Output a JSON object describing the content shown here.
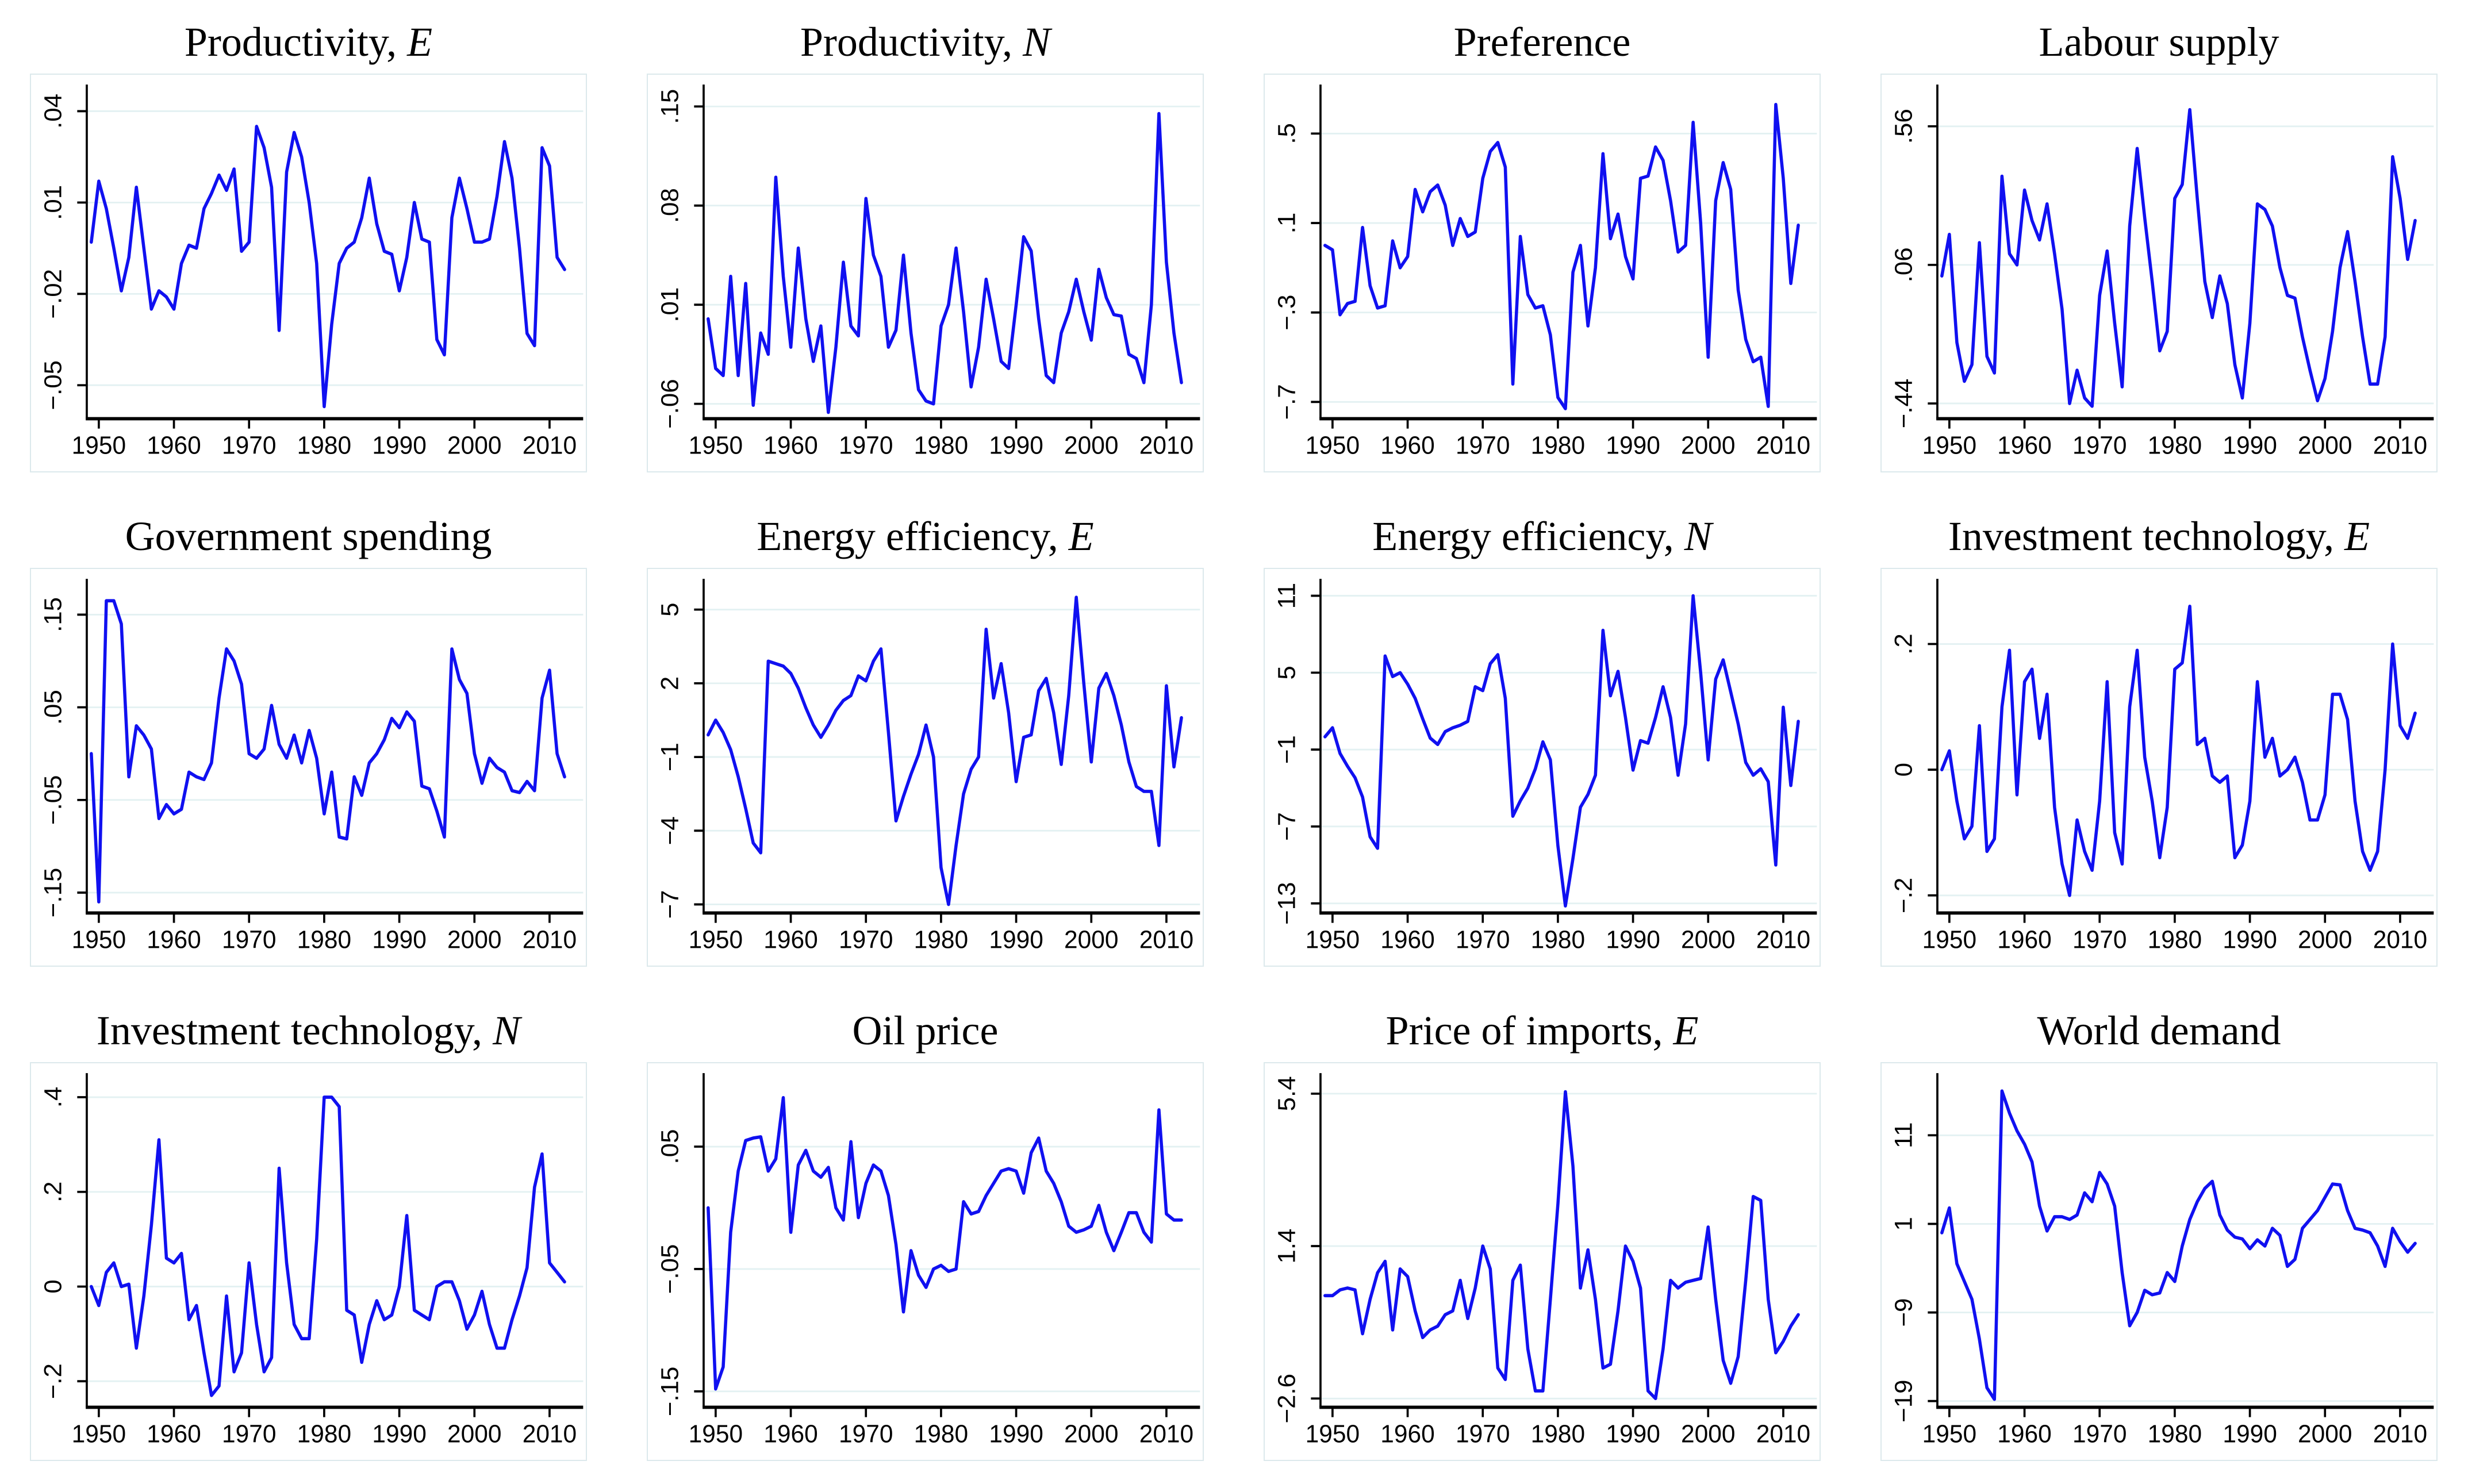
{
  "figure": {
    "line_color": "#1010f0",
    "grid_color": "#e3f1f2",
    "panel_border_color": "#dce9ec",
    "axis_color": "#000000",
    "text_color": "#000000",
    "year_start": 1949,
    "year_end": 2012,
    "x_domain": [
      1948.4,
      2013.2
    ],
    "x_ticks": [
      1950,
      1960,
      1970,
      1980,
      1990,
      2000,
      2010
    ]
  },
  "chart_data": [
    {
      "type": "line",
      "title": "Productivity, E",
      "title_main": "Productivity, ",
      "title_suffix": "E",
      "x_range": [
        1949,
        2012
      ],
      "y_tick_values": [
        0.04,
        0.01,
        -0.02,
        -0.05
      ],
      "y_tick_labels": [
        ".04",
        ".01",
        "−.02",
        "−.05"
      ],
      "ylim": [
        -0.061,
        0.0455
      ],
      "values": [
        -0.003,
        0.017,
        0.008,
        -0.005,
        -0.019,
        -0.008,
        0.015,
        -0.005,
        -0.025,
        -0.019,
        -0.021,
        -0.025,
        -0.01,
        -0.004,
        -0.005,
        0.008,
        0.013,
        0.019,
        0.014,
        0.021,
        -0.006,
        -0.003,
        0.035,
        0.028,
        0.015,
        -0.032,
        0.02,
        0.033,
        0.025,
        0.01,
        -0.01,
        -0.057,
        -0.03,
        -0.01,
        -0.005,
        -0.003,
        0.005,
        0.018,
        0.003,
        -0.006,
        -0.007,
        -0.019,
        -0.008,
        0.01,
        -0.002,
        -0.003,
        -0.035,
        -0.04,
        0.005,
        0.018,
        0.008,
        -0.003,
        -0.003,
        -0.002,
        0.012,
        0.03,
        0.018,
        -0.005,
        -0.033,
        -0.037,
        0.028,
        0.022,
        -0.008,
        -0.012
      ]
    },
    {
      "type": "line",
      "title": "Productivity, N",
      "title_main": "Productivity, ",
      "title_suffix": "N",
      "x_range": [
        1949,
        2012
      ],
      "y_tick_values": [
        0.15,
        0.08,
        0.01,
        -0.06
      ],
      "y_tick_labels": [
        ".15",
        ".08",
        ".01",
        "−.06"
      ],
      "ylim": [
        -0.0705,
        0.1585
      ],
      "values": [
        0.0,
        -0.035,
        -0.04,
        0.03,
        -0.04,
        0.025,
        -0.061,
        -0.01,
        -0.025,
        0.1,
        0.03,
        -0.02,
        0.05,
        0.0,
        -0.03,
        -0.005,
        -0.066,
        -0.02,
        0.04,
        -0.005,
        -0.012,
        0.085,
        0.045,
        0.03,
        -0.02,
        -0.008,
        0.045,
        -0.01,
        -0.05,
        -0.058,
        -0.06,
        -0.005,
        0.01,
        0.05,
        0.005,
        -0.048,
        -0.02,
        0.028,
        0.0,
        -0.03,
        -0.035,
        0.01,
        0.058,
        0.048,
        0.0,
        -0.04,
        -0.045,
        -0.01,
        0.005,
        0.028,
        0.005,
        -0.015,
        0.035,
        0.015,
        0.003,
        0.002,
        -0.025,
        -0.028,
        -0.045,
        0.01,
        0.145,
        0.04,
        -0.01,
        -0.045
      ]
    },
    {
      "type": "line",
      "title": "Preference",
      "title_main": "Preference",
      "title_suffix": "",
      "x_range": [
        1949,
        2012
      ],
      "y_tick_values": [
        0.5,
        0.1,
        -0.3,
        -0.7
      ],
      "y_tick_labels": [
        ".5",
        ".1",
        "−.3",
        "−.7"
      ],
      "ylim": [
        -0.775,
        0.675
      ],
      "values": [
        0.0,
        -0.02,
        -0.31,
        -0.26,
        -0.25,
        0.08,
        -0.18,
        -0.28,
        -0.27,
        0.02,
        -0.1,
        -0.05,
        0.25,
        0.15,
        0.24,
        0.27,
        0.18,
        0.0,
        0.12,
        0.04,
        0.06,
        0.3,
        0.42,
        0.46,
        0.35,
        -0.62,
        0.04,
        -0.22,
        -0.28,
        -0.27,
        -0.4,
        -0.68,
        -0.73,
        -0.12,
        0.0,
        -0.36,
        -0.1,
        0.41,
        0.03,
        0.14,
        -0.05,
        -0.15,
        0.3,
        0.31,
        0.44,
        0.38,
        0.2,
        -0.03,
        0.0,
        0.55,
        0.1,
        -0.5,
        0.2,
        0.37,
        0.25,
        -0.2,
        -0.42,
        -0.52,
        -0.5,
        -0.72,
        0.63,
        0.3,
        -0.17,
        0.09
      ]
    },
    {
      "type": "line",
      "title": "Labour supply",
      "title_main": "Labour supply",
      "title_suffix": "",
      "x_range": [
        1949,
        2012
      ],
      "y_tick_values": [
        0.56,
        0.06,
        -0.44
      ],
      "y_tick_labels": [
        ".56",
        ".06",
        "−.44"
      ],
      "ylim": [
        -0.495,
        0.675
      ],
      "values": [
        0.02,
        0.17,
        -0.22,
        -0.36,
        -0.3,
        0.14,
        -0.27,
        -0.33,
        0.38,
        0.1,
        0.06,
        0.33,
        0.22,
        0.15,
        0.28,
        0.1,
        -0.1,
        -0.44,
        -0.32,
        -0.42,
        -0.45,
        -0.05,
        0.11,
        -0.15,
        -0.38,
        0.2,
        0.48,
        0.23,
        0.0,
        -0.25,
        -0.18,
        0.3,
        0.35,
        0.62,
        0.3,
        0.0,
        -0.13,
        0.02,
        -0.08,
        -0.3,
        -0.42,
        -0.15,
        0.28,
        0.26,
        0.2,
        0.05,
        -0.05,
        -0.06,
        -0.2,
        -0.32,
        -0.43,
        -0.35,
        -0.18,
        0.05,
        0.18,
        0.0,
        -0.2,
        -0.37,
        -0.37,
        -0.2,
        0.45,
        0.3,
        0.08,
        0.22
      ]
    },
    {
      "type": "line",
      "title": "Government spending",
      "title_main": "Government spending",
      "title_suffix": "",
      "x_range": [
        1949,
        2012
      ],
      "y_tick_values": [
        0.15,
        0.05,
        -0.05,
        -0.15
      ],
      "y_tick_labels": [
        ".15",
        ".05",
        "−.05",
        "−.15"
      ],
      "ylim": [
        -0.172,
        0.178
      ],
      "values": [
        0.0,
        -0.16,
        0.165,
        0.165,
        0.14,
        -0.025,
        0.03,
        0.02,
        0.005,
        -0.07,
        -0.055,
        -0.065,
        -0.06,
        -0.02,
        -0.025,
        -0.028,
        -0.01,
        0.06,
        0.113,
        0.1,
        0.075,
        0.0,
        -0.005,
        0.005,
        0.052,
        0.01,
        -0.005,
        0.02,
        -0.01,
        0.025,
        -0.005,
        -0.065,
        -0.02,
        -0.09,
        -0.092,
        -0.025,
        -0.045,
        -0.01,
        0.0,
        0.015,
        0.038,
        0.028,
        0.045,
        0.035,
        -0.035,
        -0.038,
        -0.062,
        -0.09,
        0.113,
        0.08,
        0.065,
        0.0,
        -0.032,
        -0.005,
        -0.015,
        -0.02,
        -0.04,
        -0.042,
        -0.03,
        -0.04,
        0.06,
        0.09,
        0.0,
        -0.025
      ]
    },
    {
      "type": "line",
      "title": "Energy efficiency, E",
      "title_main": "Energy efficiency, ",
      "title_suffix": "E",
      "x_range": [
        1949,
        2012
      ],
      "y_tick_values": [
        5,
        2,
        -1,
        -4,
        -7
      ],
      "y_tick_labels": [
        "5",
        "2",
        "−1",
        "−4",
        "−7"
      ],
      "ylim": [
        -7.35,
        5.85
      ],
      "values": [
        -0.1,
        0.5,
        0.0,
        -0.7,
        -1.8,
        -3.1,
        -4.5,
        -4.9,
        2.9,
        2.8,
        2.7,
        2.4,
        1.8,
        1.0,
        0.3,
        -0.2,
        0.3,
        0.9,
        1.3,
        1.5,
        2.3,
        2.1,
        2.9,
        3.4,
        0.0,
        -3.6,
        -2.6,
        -1.7,
        -0.9,
        0.3,
        -1.0,
        -5.5,
        -7.0,
        -4.6,
        -2.5,
        -1.5,
        -1.0,
        4.2,
        1.4,
        2.8,
        0.8,
        -2.0,
        -0.2,
        -0.1,
        1.7,
        2.2,
        0.8,
        -1.3,
        1.5,
        5.5,
        2.0,
        -1.2,
        1.8,
        2.4,
        1.5,
        0.3,
        -1.2,
        -2.2,
        -2.4,
        -2.4,
        -4.6,
        1.9,
        -1.4,
        0.6
      ]
    },
    {
      "type": "line",
      "title": "Energy efficiency, N",
      "title_main": "Energy efficiency, ",
      "title_suffix": "N",
      "x_range": [
        1949,
        2012
      ],
      "y_tick_values": [
        11,
        5,
        -1,
        -7,
        -13
      ],
      "y_tick_labels": [
        "11",
        "5",
        "−1",
        "−7",
        "−13"
      ],
      "ylim": [
        -13.75,
        11.55
      ],
      "values": [
        0.0,
        0.7,
        -1.3,
        -2.3,
        -3.2,
        -4.7,
        -7.8,
        -8.7,
        6.3,
        4.7,
        5.0,
        4.1,
        3.0,
        1.4,
        -0.1,
        -0.6,
        0.4,
        0.7,
        0.9,
        1.2,
        3.9,
        3.6,
        5.7,
        6.4,
        3.0,
        -6.2,
        -5.0,
        -4.0,
        -2.5,
        -0.4,
        -1.8,
        -8.5,
        -13.2,
        -9.5,
        -5.5,
        -4.5,
        -3.0,
        8.3,
        3.2,
        5.1,
        1.5,
        -2.6,
        -0.3,
        -0.5,
        1.5,
        3.9,
        1.5,
        -3.0,
        1.0,
        11.0,
        5.0,
        -1.8,
        4.5,
        6.0,
        3.5,
        1.0,
        -2.0,
        -3.0,
        -2.5,
        -3.5,
        -10.0,
        2.3,
        -3.8,
        1.2
      ]
    },
    {
      "type": "line",
      "title": "Investment technology, E",
      "title_main": "Investment technology, ",
      "title_suffix": "E",
      "x_range": [
        1949,
        2012
      ],
      "y_tick_values": [
        0.2,
        0,
        -0.2
      ],
      "y_tick_labels": [
        ".2",
        "0",
        "−.2"
      ],
      "ylim": [
        -0.228,
        0.288
      ],
      "values": [
        0.0,
        0.03,
        -0.05,
        -0.11,
        -0.09,
        0.07,
        -0.13,
        -0.11,
        0.1,
        0.19,
        -0.04,
        0.14,
        0.16,
        0.05,
        0.12,
        -0.06,
        -0.15,
        -0.2,
        -0.08,
        -0.13,
        -0.16,
        -0.05,
        0.14,
        -0.1,
        -0.15,
        0.1,
        0.19,
        0.02,
        -0.05,
        -0.14,
        -0.06,
        0.16,
        0.17,
        0.26,
        0.04,
        0.05,
        -0.01,
        -0.02,
        -0.01,
        -0.14,
        -0.12,
        -0.05,
        0.14,
        0.02,
        0.05,
        -0.01,
        0.0,
        0.02,
        -0.02,
        -0.08,
        -0.08,
        -0.04,
        0.12,
        0.12,
        0.08,
        -0.05,
        -0.13,
        -0.16,
        -0.13,
        0.0,
        0.2,
        0.07,
        0.05,
        0.09
      ]
    },
    {
      "type": "line",
      "title": "Investment technology, N",
      "title_main": "Investment technology, ",
      "title_suffix": "N",
      "x_range": [
        1949,
        2012
      ],
      "y_tick_values": [
        0.4,
        0.2,
        0,
        -0.2
      ],
      "y_tick_labels": [
        ".4",
        ".2",
        "0",
        "−.2"
      ],
      "ylim": [
        -0.255,
        0.43
      ],
      "values": [
        0.0,
        -0.04,
        0.03,
        0.05,
        0.0,
        0.005,
        -0.13,
        -0.02,
        0.13,
        0.31,
        0.06,
        0.05,
        0.07,
        -0.07,
        -0.04,
        -0.14,
        -0.23,
        -0.21,
        -0.02,
        -0.18,
        -0.14,
        0.05,
        -0.08,
        -0.18,
        -0.15,
        0.25,
        0.05,
        -0.08,
        -0.11,
        -0.11,
        0.1,
        0.4,
        0.4,
        0.38,
        -0.05,
        -0.06,
        -0.16,
        -0.08,
        -0.03,
        -0.07,
        -0.06,
        0.0,
        0.15,
        -0.05,
        -0.06,
        -0.07,
        0.0,
        0.01,
        0.01,
        -0.03,
        -0.09,
        -0.06,
        -0.01,
        -0.08,
        -0.13,
        -0.13,
        -0.07,
        -0.02,
        0.04,
        0.21,
        0.28,
        0.05,
        0.03,
        0.01
      ]
    },
    {
      "type": "line",
      "title": "Oil price",
      "title_main": "Oil price",
      "title_suffix": "",
      "x_range": [
        1949,
        2012
      ],
      "y_tick_values": [
        0.05,
        -0.05,
        -0.15
      ],
      "y_tick_labels": [
        ".05",
        "−.05",
        "−.15"
      ],
      "ylim": [
        -0.163,
        0.102
      ],
      "values": [
        0.0,
        -0.148,
        -0.13,
        -0.02,
        0.03,
        0.055,
        0.057,
        0.058,
        0.03,
        0.04,
        0.09,
        -0.02,
        0.035,
        0.047,
        0.03,
        0.025,
        0.033,
        0.0,
        -0.01,
        0.054,
        -0.008,
        0.02,
        0.035,
        0.03,
        0.01,
        -0.03,
        -0.085,
        -0.035,
        -0.055,
        -0.065,
        -0.05,
        -0.047,
        -0.052,
        -0.05,
        0.005,
        -0.005,
        -0.003,
        0.01,
        0.02,
        0.03,
        0.032,
        0.03,
        0.012,
        0.045,
        0.057,
        0.03,
        0.02,
        0.005,
        -0.015,
        -0.02,
        -0.018,
        -0.015,
        0.002,
        -0.02,
        -0.035,
        -0.02,
        -0.004,
        -0.004,
        -0.02,
        -0.028,
        0.08,
        -0.005,
        -0.01,
        -0.01
      ]
    },
    {
      "type": "line",
      "title": "Price of imports, E",
      "title_main": "Price of imports, ",
      "title_suffix": "E",
      "x_range": [
        1949,
        2012
      ],
      "y_tick_values": [
        5.4,
        1.4,
        -2.6
      ],
      "y_tick_labels": [
        "5.4",
        "1.4",
        "−2.6"
      ],
      "ylim": [
        -2.83,
        5.68
      ],
      "values": [
        0.1,
        0.1,
        0.25,
        0.3,
        0.25,
        -0.9,
        0.0,
        0.7,
        1.0,
        -0.8,
        0.8,
        0.6,
        -0.3,
        -1.0,
        -0.8,
        -0.7,
        -0.4,
        -0.3,
        0.5,
        -0.5,
        0.3,
        1.4,
        0.8,
        -1.8,
        -2.1,
        0.5,
        0.9,
        -1.3,
        -2.4,
        -2.4,
        0.0,
        2.5,
        5.45,
        3.5,
        0.3,
        1.3,
        0.0,
        -1.8,
        -1.7,
        -0.3,
        1.4,
        1.0,
        0.3,
        -2.4,
        -2.6,
        -1.3,
        0.5,
        0.3,
        0.45,
        0.5,
        0.55,
        1.9,
        0.0,
        -1.6,
        -2.2,
        -1.5,
        0.5,
        2.7,
        2.6,
        0.0,
        -1.4,
        -1.1,
        -0.7,
        -0.4
      ]
    },
    {
      "type": "line",
      "title": "World demand",
      "title_main": "World demand",
      "title_suffix": "",
      "x_range": [
        1949,
        2012
      ],
      "y_tick_values": [
        11,
        1,
        -9,
        -19
      ],
      "y_tick_labels": [
        "11",
        "1",
        "−9",
        "−19"
      ],
      "ylim": [
        -19.7,
        16.9
      ],
      "values": [
        0.0,
        2.8,
        -3.5,
        -5.5,
        -7.5,
        -12.0,
        -17.5,
        -18.8,
        16.0,
        13.5,
        11.5,
        10.0,
        8.0,
        3.0,
        0.2,
        1.8,
        1.8,
        1.5,
        2.0,
        4.5,
        3.5,
        6.8,
        5.5,
        3.0,
        -4.5,
        -10.5,
        -9.0,
        -6.5,
        -7.0,
        -6.8,
        -4.5,
        -5.5,
        -1.5,
        1.5,
        3.5,
        5.0,
        5.8,
        2.0,
        0.3,
        -0.5,
        -0.7,
        -1.8,
        -0.8,
        -1.5,
        0.5,
        -0.3,
        -3.8,
        -3.0,
        0.5,
        1.5,
        2.5,
        4.0,
        5.5,
        5.4,
        2.5,
        0.5,
        0.3,
        0.0,
        -1.5,
        -3.8,
        0.5,
        -1.0,
        -2.2,
        -1.2
      ]
    }
  ]
}
